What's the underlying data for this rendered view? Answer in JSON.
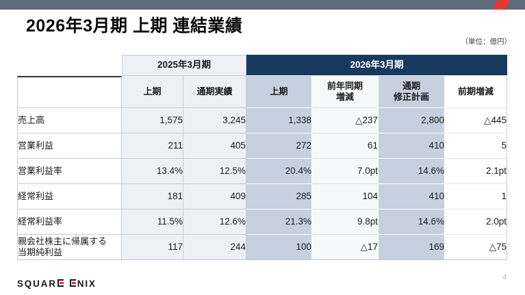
{
  "page": {
    "title": "2026年3月期 上期 連結業績",
    "unit_note": "（単位：億円）",
    "page_number": "4"
  },
  "table": {
    "group_headers": [
      {
        "label": "2025年3月期",
        "span": 2
      },
      {
        "label": "2026年3月期",
        "span": 4
      }
    ],
    "column_headers": [
      "上期",
      "通期実績",
      "上期",
      "前年同期\n増減",
      "通期\n修正計画",
      "前期増減"
    ],
    "rows": [
      {
        "label": "売上高",
        "values": [
          "1,575",
          "3,245",
          "1,338",
          "△237",
          "2,800",
          "△445"
        ]
      },
      {
        "label": "営業利益",
        "values": [
          "211",
          "405",
          "272",
          "61",
          "410",
          "5"
        ]
      },
      {
        "label": "営業利益率",
        "values": [
          "13.4%",
          "12.5%",
          "20.4%",
          "7.0pt",
          "14.6%",
          "2.1pt"
        ]
      },
      {
        "label": "経常利益",
        "values": [
          "181",
          "409",
          "285",
          "104",
          "410",
          "1"
        ]
      },
      {
        "label": "経常利益率",
        "values": [
          "11.5%",
          "12.6%",
          "21.3%",
          "9.8pt",
          "14.6%",
          "2.0pt"
        ]
      },
      {
        "label": "親会社株主に帰属する\n当期純利益",
        "values": [
          "117",
          "244",
          "100",
          "△17",
          "169",
          "△75"
        ]
      }
    ]
  },
  "footer": {
    "logo_text": "SQUARE ENIX",
    "logo_part1": "SQUAR",
    "logo_part2": "NIX"
  },
  "colors": {
    "top_bar": "#5d6b7a",
    "accent_red": "#e23a31",
    "header_navy": "#17395e",
    "column_light": "#edf1f7",
    "column_blue": "#c7d0df",
    "border_gray": "#c5cbd5"
  }
}
